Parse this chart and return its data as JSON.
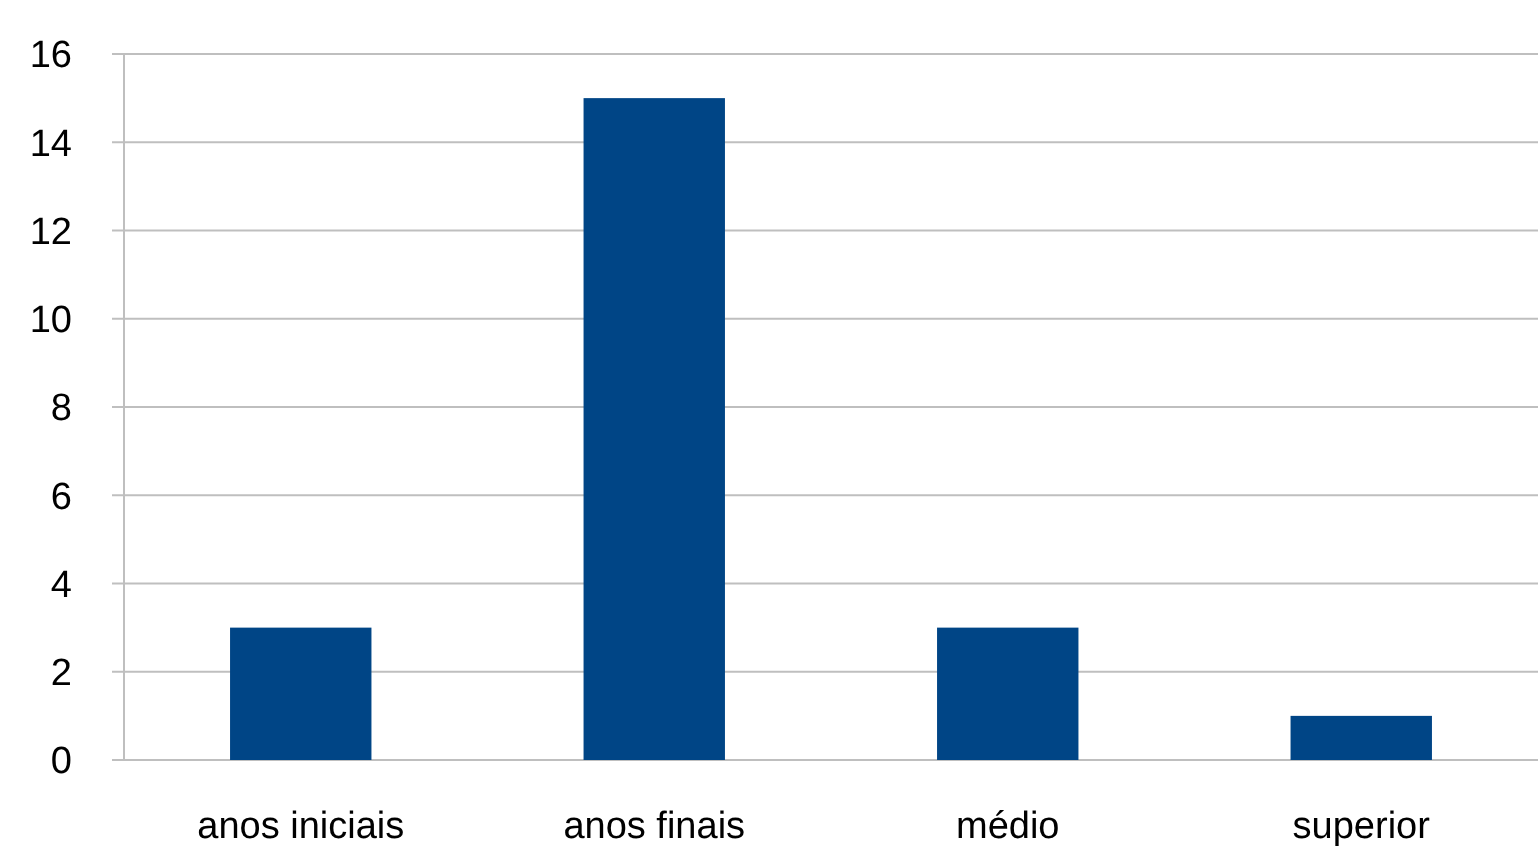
{
  "chart_data": {
    "type": "bar",
    "categories": [
      "anos iniciais",
      "anos finais",
      "médio",
      "superior"
    ],
    "values": [
      3,
      15,
      3,
      1
    ],
    "color": "#004586",
    "ylim": [
      0,
      16
    ],
    "yticks": [
      0,
      2,
      4,
      6,
      8,
      10,
      12,
      14,
      16
    ],
    "grid": "y"
  }
}
